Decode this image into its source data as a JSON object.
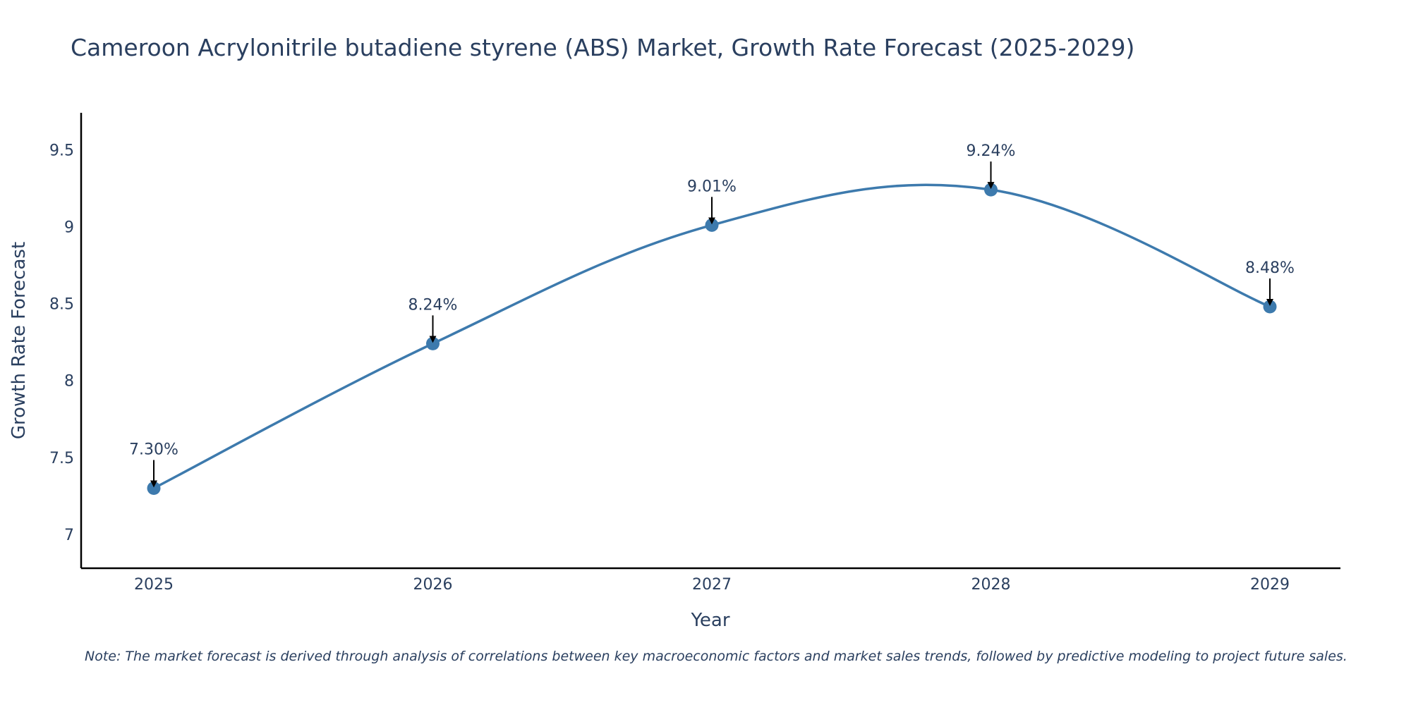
{
  "chart_data": {
    "type": "line",
    "title": "Cameroon Acrylonitrile butadiene styrene (ABS) Market, Growth Rate Forecast (2025-2029)",
    "xlabel": "Year",
    "ylabel": "Growth Rate Forecast",
    "categories": [
      "2025",
      "2026",
      "2027",
      "2028",
      "2029"
    ],
    "values": [
      7.3,
      8.24,
      9.01,
      9.24,
      8.48
    ],
    "data_labels": [
      "7.30%",
      "8.24%",
      "9.01%",
      "9.24%",
      "8.48%"
    ],
    "yticks": [
      7,
      7.5,
      8,
      8.5,
      9,
      9.5
    ],
    "ytick_labels": [
      "7",
      "7.5",
      "8",
      "8.5",
      "9",
      "9.5"
    ],
    "ylim": [
      6.78,
      9.74
    ],
    "line_color": "#3d7aad",
    "marker_color": "#3d7aad",
    "smoothing": "spline",
    "grid": false
  },
  "note": "Note: The market forecast is derived through analysis of correlations between key macroeconomic factors and market sales trends, followed by predictive modeling to project future sales."
}
